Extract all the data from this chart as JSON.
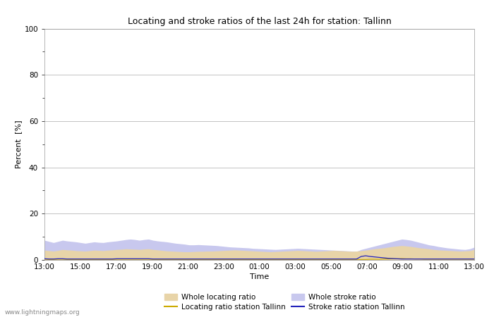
{
  "title": "Locating and stroke ratios of the last 24h for station: Tallinn",
  "xlabel": "Time",
  "ylabel": "Percent  [%]",
  "ylim": [
    0,
    100
  ],
  "yticks_major": [
    0,
    20,
    40,
    60,
    80,
    100
  ],
  "yticks_minor": [
    10,
    30,
    50,
    70,
    90
  ],
  "x_labels": [
    "13:00",
    "15:00",
    "17:00",
    "19:00",
    "21:00",
    "23:00",
    "01:00",
    "03:00",
    "05:00",
    "07:00",
    "09:00",
    "11:00",
    "13:00"
  ],
  "watermark": "www.lightningmaps.org",
  "whole_locating_color": "#e8d4a8",
  "whole_stroke_color": "#c8c8ee",
  "locating_station_color": "#ccaa00",
  "stroke_station_color": "#2222bb",
  "bg_color": "#f0f0f8",
  "whole_locating_ratio": [
    4.2,
    4.0,
    3.8,
    4.1,
    4.5,
    4.3,
    4.2,
    4.0,
    3.9,
    3.8,
    4.0,
    4.2,
    4.1,
    4.0,
    4.2,
    4.3,
    4.5,
    4.6,
    4.8,
    4.7,
    4.6,
    4.5,
    4.7,
    4.8,
    4.5,
    4.3,
    4.1,
    3.9,
    3.8,
    3.7,
    3.6,
    3.5,
    3.5,
    3.6,
    3.7,
    3.7,
    3.8,
    3.8,
    3.9,
    4.0,
    4.1,
    4.2,
    4.3,
    4.2,
    4.1,
    4.0,
    3.9,
    3.8,
    3.7,
    3.6,
    3.5,
    3.6,
    3.7,
    3.8,
    3.9,
    4.0,
    4.1,
    4.0,
    3.9,
    3.8,
    3.7,
    3.8,
    3.9,
    4.0,
    4.1,
    4.0,
    3.9,
    3.8,
    3.7,
    3.8,
    4.0,
    4.2,
    4.5,
    4.8,
    5.0,
    5.2,
    5.5,
    5.8,
    6.0,
    6.2,
    6.0,
    5.8,
    5.5,
    5.2,
    5.0,
    4.8,
    4.5,
    4.3,
    4.2,
    4.1,
    4.0,
    3.9,
    3.8,
    3.9,
    4.0,
    4.5
  ],
  "whole_stroke_ratio": [
    8.5,
    8.0,
    7.5,
    8.0,
    8.5,
    8.2,
    8.0,
    7.8,
    7.5,
    7.2,
    7.5,
    7.8,
    7.6,
    7.5,
    7.8,
    8.0,
    8.2,
    8.5,
    8.8,
    9.0,
    8.8,
    8.5,
    8.8,
    9.0,
    8.5,
    8.2,
    8.0,
    7.8,
    7.5,
    7.2,
    7.0,
    6.8,
    6.5,
    6.5,
    6.6,
    6.5,
    6.4,
    6.3,
    6.2,
    6.0,
    5.8,
    5.6,
    5.5,
    5.4,
    5.3,
    5.2,
    5.0,
    4.9,
    4.8,
    4.7,
    4.6,
    4.5,
    4.6,
    4.7,
    4.8,
    4.9,
    5.0,
    4.9,
    4.8,
    4.7,
    4.6,
    4.5,
    4.4,
    4.3,
    4.2,
    4.1,
    4.0,
    3.9,
    3.8,
    3.7,
    4.5,
    5.0,
    5.5,
    6.0,
    6.5,
    7.0,
    7.5,
    8.0,
    8.5,
    9.0,
    8.8,
    8.5,
    8.0,
    7.5,
    7.0,
    6.5,
    6.2,
    5.8,
    5.5,
    5.2,
    5.0,
    4.8,
    4.6,
    4.5,
    4.8,
    5.5
  ],
  "locating_station_ratio": [
    0.3,
    0.2,
    0.2,
    0.3,
    0.3,
    0.2,
    0.2,
    0.2,
    0.2,
    0.2,
    0.2,
    0.2,
    0.2,
    0.2,
    0.2,
    0.2,
    0.3,
    0.3,
    0.3,
    0.3,
    0.3,
    0.3,
    0.3,
    0.3,
    0.2,
    0.2,
    0.2,
    0.2,
    0.2,
    0.2,
    0.2,
    0.2,
    0.2,
    0.2,
    0.2,
    0.2,
    0.2,
    0.2,
    0.2,
    0.2,
    0.2,
    0.2,
    0.2,
    0.2,
    0.2,
    0.2,
    0.2,
    0.2,
    0.2,
    0.2,
    0.2,
    0.2,
    0.2,
    0.2,
    0.2,
    0.2,
    0.2,
    0.2,
    0.2,
    0.2,
    0.2,
    0.2,
    0.2,
    0.2,
    0.2,
    0.2,
    0.2,
    0.2,
    0.2,
    0.2,
    0.2,
    0.2,
    0.3,
    0.3,
    0.3,
    0.4,
    0.4,
    0.5,
    0.5,
    0.6,
    0.5,
    0.5,
    0.4,
    0.4,
    0.3,
    0.3,
    0.3,
    0.3,
    0.3,
    0.3,
    0.3,
    0.3,
    0.3,
    0.3,
    0.3,
    0.3
  ],
  "stroke_station_ratio": [
    0.5,
    0.4,
    0.4,
    0.5,
    0.5,
    0.4,
    0.4,
    0.4,
    0.4,
    0.4,
    0.4,
    0.4,
    0.4,
    0.4,
    0.4,
    0.4,
    0.5,
    0.5,
    0.5,
    0.5,
    0.5,
    0.5,
    0.5,
    0.5,
    0.4,
    0.4,
    0.4,
    0.4,
    0.4,
    0.4,
    0.4,
    0.4,
    0.4,
    0.4,
    0.4,
    0.4,
    0.4,
    0.4,
    0.4,
    0.4,
    0.4,
    0.4,
    0.4,
    0.4,
    0.4,
    0.4,
    0.4,
    0.4,
    0.4,
    0.4,
    0.4,
    0.4,
    0.4,
    0.4,
    0.4,
    0.4,
    0.4,
    0.4,
    0.4,
    0.4,
    0.4,
    0.4,
    0.4,
    0.4,
    0.4,
    0.4,
    0.4,
    0.4,
    0.4,
    0.4,
    1.5,
    1.8,
    1.5,
    1.3,
    1.1,
    0.9,
    0.7,
    0.6,
    0.5,
    0.4,
    0.4,
    0.4,
    0.4,
    0.4,
    0.4,
    0.4,
    0.4,
    0.4,
    0.4,
    0.4,
    0.4,
    0.4,
    0.4,
    0.4,
    0.4,
    0.4
  ]
}
